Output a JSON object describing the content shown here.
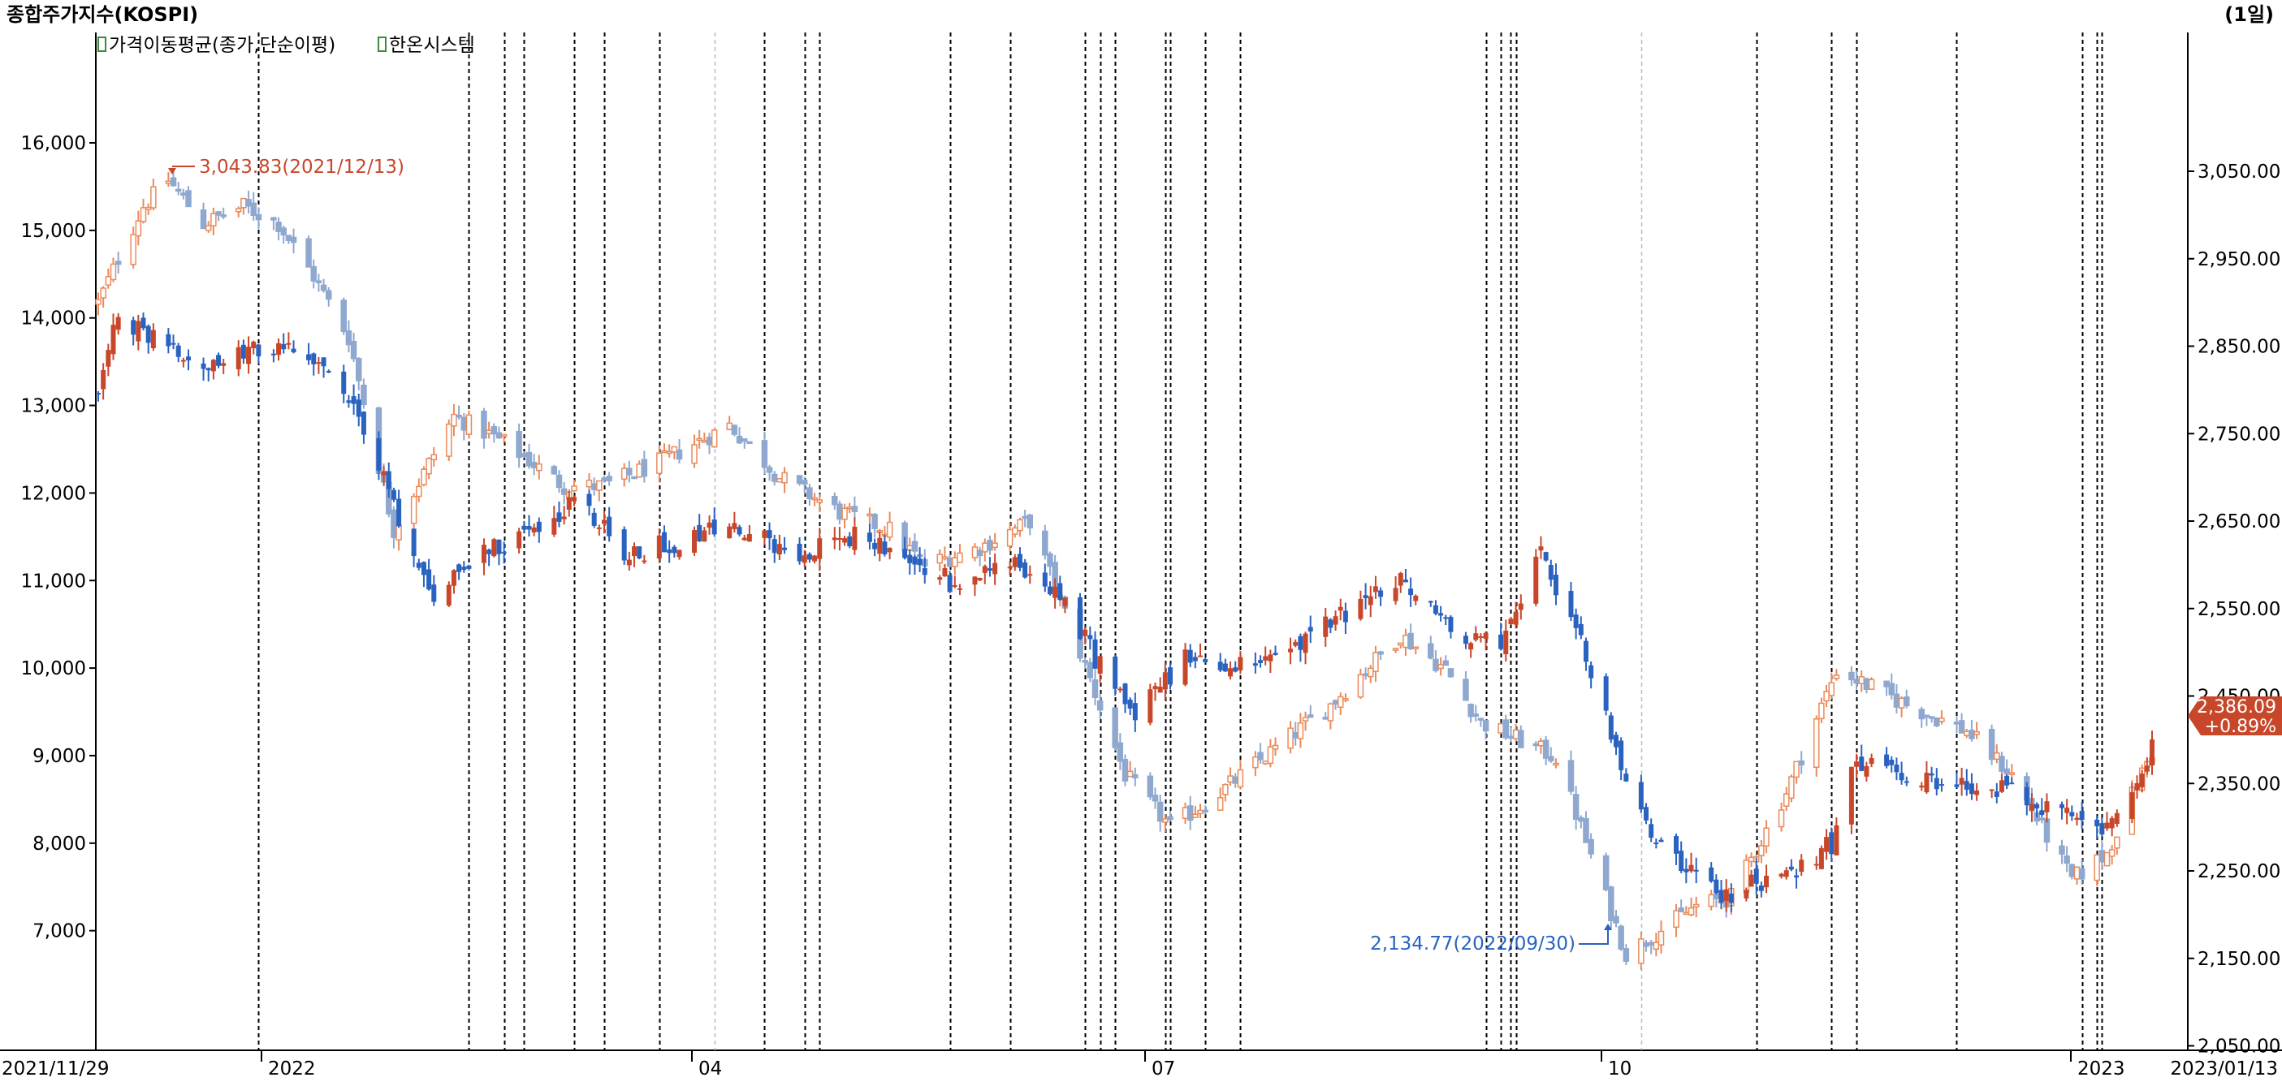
{
  "header": {
    "title": "종합주가지수(KOSPI)",
    "period": "(1일)"
  },
  "legend": [
    {
      "label": "가격이동평균(종가,단순이평)"
    },
    {
      "label": "한온시스템"
    }
  ],
  "colors": {
    "up": "#c8472a",
    "down": "#2a62c0",
    "up_light": "#ea8a5a",
    "down_light": "#8fa8cf",
    "grid": "#000000",
    "annotation_high": "#c8472a",
    "annotation_low": "#2a62c0",
    "current_badge": "#c8472a"
  },
  "annotations": {
    "high": "3,043.83(2021/12/13)",
    "low": "2,134.77(2022/09/30)"
  },
  "current_badge": {
    "price": "2,386.09",
    "change": "+0.89%"
  },
  "chart_data": {
    "type": "candlestick",
    "title": "종합주가지수(KOSPI)",
    "left_axis": {
      "ticks": [
        16000,
        15000,
        14000,
        13000,
        12000,
        11000,
        10000,
        9000,
        8000,
        7000
      ],
      "tick_labels": [
        "16,000",
        "15,000",
        "14,000",
        "13,000",
        "12,000",
        "11,000",
        "10,000",
        "9,000",
        "8,000",
        "7,000"
      ]
    },
    "right_axis": {
      "ticks": [
        3050,
        2950,
        2850,
        2750,
        2650,
        2550,
        2450,
        2350,
        2250,
        2150,
        2050
      ],
      "tick_labels": [
        "3,050.00",
        "2,950.00",
        "2,850.00",
        "2,750.00",
        "2,650.00",
        "2,550.00",
        "2,450.00",
        "2,350.00",
        "2,250.00",
        "2,150.00",
        "2,050.00"
      ]
    },
    "x_axis": {
      "start": "2021/11/29",
      "end": "2023/01/13",
      "tick_labels": [
        "2021/11/29",
        "2022",
        "04",
        "07",
        "10",
        "2023",
        "2023/01/13"
      ]
    },
    "series": [
      {
        "name": "종합주가지수(KOSPI)",
        "axis": "right",
        "style": "light candles",
        "close_path": [
          [
            "2021/11/29",
            2900
          ],
          [
            "2021/12/03",
            2950
          ],
          [
            "2021/12/08",
            3010
          ],
          [
            "2021/12/13",
            3040
          ],
          [
            "2021/12/20",
            2990
          ],
          [
            "2021/12/28",
            3010
          ],
          [
            "2022/01/04",
            2990
          ],
          [
            "2022/01/11",
            2930
          ],
          [
            "2022/01/18",
            2860
          ],
          [
            "2022/01/27",
            2640
          ],
          [
            "2022/02/08",
            2770
          ],
          [
            "2022/02/18",
            2740
          ],
          [
            "2022/03/02",
            2690
          ],
          [
            "2022/03/10",
            2690
          ],
          [
            "2022/03/22",
            2720
          ],
          [
            "2022/04/04",
            2760
          ],
          [
            "2022/04/14",
            2700
          ],
          [
            "2022/04/26",
            2660
          ],
          [
            "2022/05/06",
            2640
          ],
          [
            "2022/05/13",
            2600
          ],
          [
            "2022/05/24",
            2620
          ],
          [
            "2022/06/03",
            2650
          ],
          [
            "2022/06/13",
            2500
          ],
          [
            "2022/06/22",
            2360
          ],
          [
            "2022/07/01",
            2300
          ],
          [
            "2022/07/11",
            2340
          ],
          [
            "2022/07/22",
            2390
          ],
          [
            "2022/08/02",
            2440
          ],
          [
            "2022/08/16",
            2520
          ],
          [
            "2022/08/25",
            2480
          ],
          [
            "2022/09/01",
            2420
          ],
          [
            "2022/09/16",
            2380
          ],
          [
            "2022/09/30",
            2155
          ],
          [
            "2022/10/14",
            2210
          ],
          [
            "2022/10/21",
            2220
          ],
          [
            "2022/11/01",
            2340
          ],
          [
            "2022/11/11",
            2480
          ],
          [
            "2022/11/25",
            2440
          ],
          [
            "2022/12/07",
            2410
          ],
          [
            "2022/12/16",
            2360
          ],
          [
            "2022/12/28",
            2240
          ],
          [
            "2023/01/04",
            2270
          ],
          [
            "2023/01/10",
            2350
          ],
          [
            "2023/01/13",
            2386.09
          ]
        ]
      },
      {
        "name": "한온시스템",
        "axis": "left",
        "style": "solid candles",
        "close_path": [
          [
            "2021/11/29",
            13200
          ],
          [
            "2021/12/03",
            14000
          ],
          [
            "2021/12/10",
            13800
          ],
          [
            "2021/12/20",
            13400
          ],
          [
            "2022/01/03",
            13700
          ],
          [
            "2022/01/12",
            13500
          ],
          [
            "2022/01/20",
            12800
          ],
          [
            "2022/01/27",
            11900
          ],
          [
            "2022/02/03",
            10800
          ],
          [
            "2022/02/10",
            11200
          ],
          [
            "2022/02/18",
            11400
          ],
          [
            "2022/03/04",
            11900
          ],
          [
            "2022/03/15",
            11300
          ],
          [
            "2022/03/28",
            11500
          ],
          [
            "2022/04/06",
            11600
          ],
          [
            "2022/04/18",
            11300
          ],
          [
            "2022/04/29",
            11500
          ],
          [
            "2022/05/10",
            11300
          ],
          [
            "2022/05/20",
            10900
          ],
          [
            "2022/05/31",
            11200
          ],
          [
            "2022/06/09",
            10900
          ],
          [
            "2022/06/16",
            10100
          ],
          [
            "2022/06/24",
            9500
          ],
          [
            "2022/07/04",
            10100
          ],
          [
            "2022/07/14",
            10000
          ],
          [
            "2022/07/25",
            10200
          ],
          [
            "2022/08/04",
            10600
          ],
          [
            "2022/08/16",
            11000
          ],
          [
            "2022/08/26",
            10400
          ],
          [
            "2022/09/05",
            10300
          ],
          [
            "2022/09/13",
            11300
          ],
          [
            "2022/09/23",
            10000
          ],
          [
            "2022/09/30",
            8600
          ],
          [
            "2022/10/11",
            7700
          ],
          [
            "2022/10/20",
            7400
          ],
          [
            "2022/11/02",
            7700
          ],
          [
            "2022/11/10",
            8000
          ],
          [
            "2022/11/14",
            8900
          ],
          [
            "2022/11/24",
            8800
          ],
          [
            "2022/12/06",
            8700
          ],
          [
            "2022/12/15",
            8600
          ],
          [
            "2022/12/27",
            8300
          ],
          [
            "2023/01/04",
            8200
          ],
          [
            "2023/01/10",
            8800
          ],
          [
            "2023/01/13",
            9100
          ]
        ]
      },
      {
        "name": "가격이동평균(종가,단순이평)",
        "axis": "right",
        "style": "hidden"
      }
    ],
    "event_lines_dates": [
      "2021/12/31",
      "2022/02/11",
      "2022/02/18",
      "2022/02/22",
      "2022/03/04",
      "2022/03/10",
      "2022/03/21",
      "2022/04/11",
      "2022/04/19",
      "2022/04/22",
      "2022/05/18",
      "2022/05/30",
      "2022/06/14",
      "2022/06/17",
      "2022/06/20",
      "2022/06/30",
      "2022/07/01",
      "2022/07/08",
      "2022/07/15",
      "2022/09/02",
      "2022/09/05",
      "2022/09/07",
      "2022/09/08",
      "2022/10/26",
      "2022/11/10",
      "2022/11/15",
      "2022/12/05",
      "2022/12/30",
      "2023/01/02",
      "2023/01/03"
    ],
    "light_gridline_dates": [
      "2022/04/01",
      "2022/10/03"
    ],
    "legend_position": "top-left",
    "grid": false
  }
}
